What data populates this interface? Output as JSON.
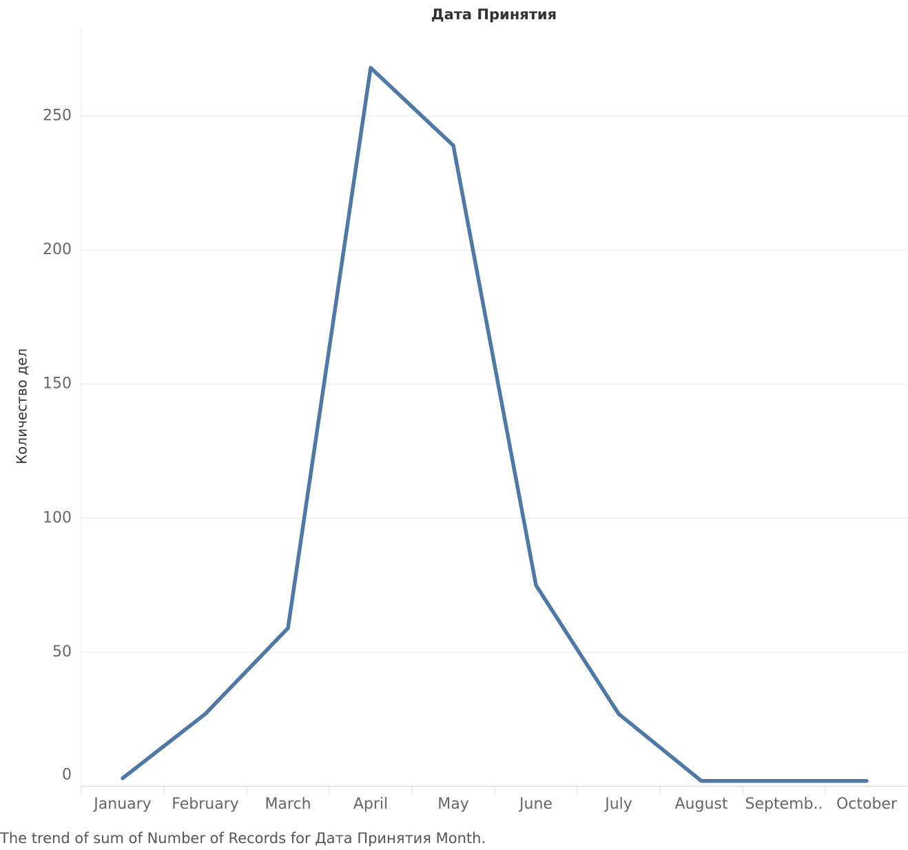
{
  "chart_data": {
    "type": "line",
    "title": "Дата Принятия",
    "y_label": "Количество дел",
    "caption": "The trend of sum of Number of Records for Дата Принятия Month.",
    "categories": [
      "January",
      "February",
      "March",
      "April",
      "May",
      "June",
      "July",
      "August",
      "Septemb..",
      "October"
    ],
    "series": [
      {
        "name": "Number of Records",
        "color": "#4e79a7",
        "values": [
          3,
          27,
          59,
          268,
          239,
          75,
          27,
          2,
          2,
          2
        ]
      }
    ],
    "ylim": [
      0,
      283
    ],
    "yticks": [
      0,
      50,
      100,
      150,
      200,
      250
    ],
    "grid": true
  }
}
